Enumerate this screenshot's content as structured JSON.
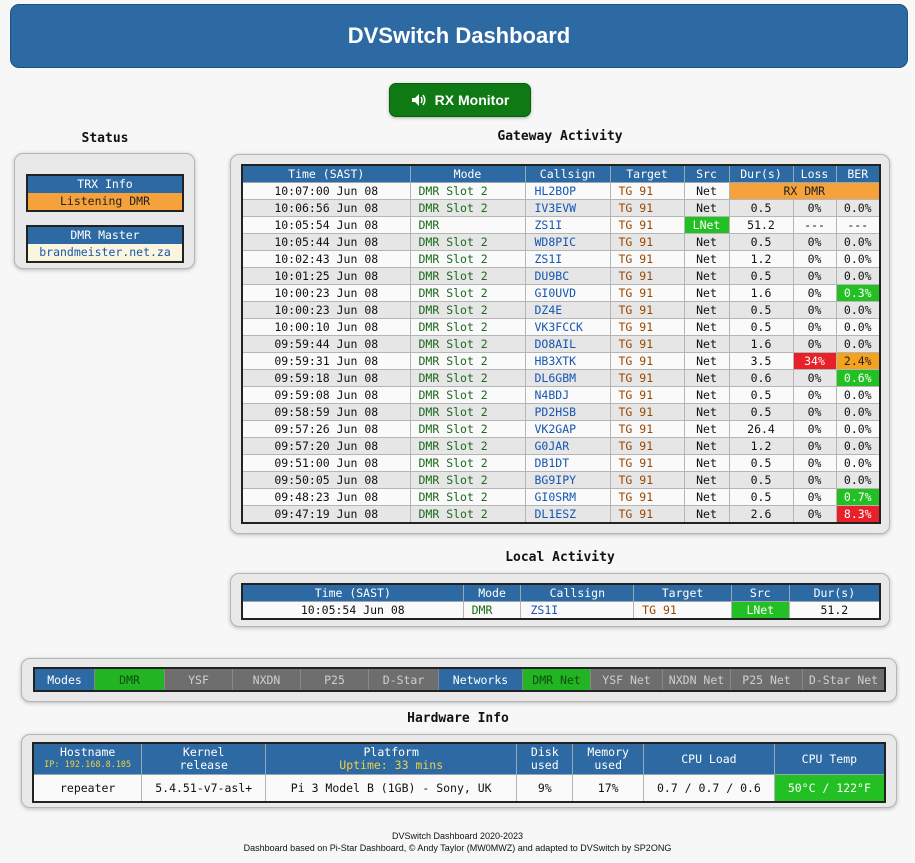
{
  "header": {
    "title": "DVSwitch Dashboard"
  },
  "rx_monitor": {
    "label": "RX Monitor"
  },
  "status": {
    "title": "Status",
    "trx_info": {
      "label": "TRX Info",
      "value": "Listening DMR"
    },
    "dmr_master": {
      "label": "DMR Master",
      "value": "brandmeister.net.za"
    }
  },
  "gateway": {
    "title": "Gateway Activity",
    "headers": [
      "Time (SAST)",
      "Mode",
      "Callsign",
      "Target",
      "Src",
      "Dur(s)",
      "Loss",
      "BER"
    ],
    "rows": [
      {
        "time": "10:07:00 Jun 08",
        "mode": "DMR Slot 2",
        "call": "HL2BOP",
        "target": "TG 91",
        "src": "Net",
        "dur": "RX DMR",
        "loss": "",
        "ber": ""
      },
      {
        "time": "10:06:56 Jun 08",
        "mode": "DMR Slot 2",
        "call": "IV3EVW",
        "target": "TG 91",
        "src": "Net",
        "dur": "0.5",
        "loss": "0%",
        "ber": "0.0%"
      },
      {
        "time": "10:05:54 Jun 08",
        "mode": "DMR",
        "call": "ZS1I",
        "target": "TG 91",
        "src": "LNet",
        "dur": "51.2",
        "loss": "---",
        "ber": "---"
      },
      {
        "time": "10:05:44 Jun 08",
        "mode": "DMR Slot 2",
        "call": "WD8PIC",
        "target": "TG 91",
        "src": "Net",
        "dur": "0.5",
        "loss": "0%",
        "ber": "0.0%"
      },
      {
        "time": "10:02:43 Jun 08",
        "mode": "DMR Slot 2",
        "call": "ZS1I",
        "target": "TG 91",
        "src": "Net",
        "dur": "1.2",
        "loss": "0%",
        "ber": "0.0%"
      },
      {
        "time": "10:01:25 Jun 08",
        "mode": "DMR Slot 2",
        "call": "DU9BC",
        "target": "TG 91",
        "src": "Net",
        "dur": "0.5",
        "loss": "0%",
        "ber": "0.0%"
      },
      {
        "time": "10:00:23 Jun 08",
        "mode": "DMR Slot 2",
        "call": "GI0UVD",
        "target": "TG 91",
        "src": "Net",
        "dur": "1.6",
        "loss": "0%",
        "ber": "0.3%"
      },
      {
        "time": "10:00:23 Jun 08",
        "mode": "DMR Slot 2",
        "call": "DZ4E",
        "target": "TG 91",
        "src": "Net",
        "dur": "0.5",
        "loss": "0%",
        "ber": "0.0%"
      },
      {
        "time": "10:00:10 Jun 08",
        "mode": "DMR Slot 2",
        "call": "VK3FCCK",
        "target": "TG 91",
        "src": "Net",
        "dur": "0.5",
        "loss": "0%",
        "ber": "0.0%"
      },
      {
        "time": "09:59:44 Jun 08",
        "mode": "DMR Slot 2",
        "call": "DO8AIL",
        "target": "TG 91",
        "src": "Net",
        "dur": "1.6",
        "loss": "0%",
        "ber": "0.0%"
      },
      {
        "time": "09:59:31 Jun 08",
        "mode": "DMR Slot 2",
        "call": "HB3XTK",
        "target": "TG 91",
        "src": "Net",
        "dur": "3.5",
        "loss": "34%",
        "ber": "2.4%"
      },
      {
        "time": "09:59:18 Jun 08",
        "mode": "DMR Slot 2",
        "call": "DL6GBM",
        "target": "TG 91",
        "src": "Net",
        "dur": "0.6",
        "loss": "0%",
        "ber": "0.6%"
      },
      {
        "time": "09:59:08 Jun 08",
        "mode": "DMR Slot 2",
        "call": "N4BDJ",
        "target": "TG 91",
        "src": "Net",
        "dur": "0.5",
        "loss": "0%",
        "ber": "0.0%"
      },
      {
        "time": "09:58:59 Jun 08",
        "mode": "DMR Slot 2",
        "call": "PD2HSB",
        "target": "TG 91",
        "src": "Net",
        "dur": "0.5",
        "loss": "0%",
        "ber": "0.0%"
      },
      {
        "time": "09:57:26 Jun 08",
        "mode": "DMR Slot 2",
        "call": "VK2GAP",
        "target": "TG 91",
        "src": "Net",
        "dur": "26.4",
        "loss": "0%",
        "ber": "0.0%"
      },
      {
        "time": "09:57:20 Jun 08",
        "mode": "DMR Slot 2",
        "call": "G0JAR",
        "target": "TG 91",
        "src": "Net",
        "dur": "1.2",
        "loss": "0%",
        "ber": "0.0%"
      },
      {
        "time": "09:51:00 Jun 08",
        "mode": "DMR Slot 2",
        "call": "DB1DT",
        "target": "TG 91",
        "src": "Net",
        "dur": "0.5",
        "loss": "0%",
        "ber": "0.0%"
      },
      {
        "time": "09:50:05 Jun 08",
        "mode": "DMR Slot 2",
        "call": "BG9IPY",
        "target": "TG 91",
        "src": "Net",
        "dur": "0.5",
        "loss": "0%",
        "ber": "0.0%"
      },
      {
        "time": "09:48:23 Jun 08",
        "mode": "DMR Slot 2",
        "call": "GI0SRM",
        "target": "TG 91",
        "src": "Net",
        "dur": "0.5",
        "loss": "0%",
        "ber": "0.7%"
      },
      {
        "time": "09:47:19 Jun 08",
        "mode": "DMR Slot 2",
        "call": "DL1ESZ",
        "target": "TG 91",
        "src": "Net",
        "dur": "2.6",
        "loss": "0%",
        "ber": "8.3%"
      }
    ]
  },
  "local": {
    "title": "Local Activity",
    "headers": [
      "Time (SAST)",
      "Mode",
      "Callsign",
      "Target",
      "Src",
      "Dur(s)"
    ],
    "rows": [
      {
        "time": "10:05:54 Jun 08",
        "mode": "DMR",
        "call": "ZS1I",
        "target": "TG 91",
        "src": "LNet",
        "dur": "51.2"
      }
    ]
  },
  "modes_bar": {
    "modes_label": "Modes",
    "modes": [
      {
        "label": "DMR",
        "active": true
      },
      {
        "label": "YSF",
        "active": false
      },
      {
        "label": "NXDN",
        "active": false
      },
      {
        "label": "P25",
        "active": false
      },
      {
        "label": "D-Star",
        "active": false
      }
    ],
    "networks_label": "Networks",
    "networks": [
      {
        "label": "DMR Net",
        "active": true
      },
      {
        "label": "YSF Net",
        "active": false
      },
      {
        "label": "NXDN Net",
        "active": false
      },
      {
        "label": "P25 Net",
        "active": false
      },
      {
        "label": "D-Star Net",
        "active": false
      }
    ]
  },
  "hardware": {
    "title": "Hardware Info",
    "hostname_label": "Hostname",
    "ip": "IP: 192.168.8.105",
    "kernel_label_1": "Kernel",
    "kernel_label_2": "release",
    "platform_label": "Platform",
    "uptime": "Uptime: 33 mins",
    "disk_label_1": "Disk",
    "disk_label_2": "used",
    "memory_label_1": "Memory",
    "memory_label_2": "used",
    "cpu_load_label": "CPU Load",
    "cpu_temp_label": "CPU Temp",
    "hostname": "repeater",
    "kernel": "5.4.51-v7-asl+",
    "platform": "Pi 3 Model B (1GB) - Sony, UK",
    "disk": "9%",
    "memory": "17%",
    "cpu_load": "0.7 / 0.7 / 0.6",
    "cpu_temp": "50°C / 122°F"
  },
  "footer": {
    "line1": "DVSwitch Dashboard 2020-2023",
    "line2": "Dashboard based on Pi-Star Dashboard, © Andy Taylor (MW0MWZ) and adapted to DVSwitch by SP2ONG"
  },
  "colors": {
    "header_blue": "#2d6aa3",
    "green": "#22c022",
    "orange": "#f5a23c",
    "red": "#e8202a"
  }
}
